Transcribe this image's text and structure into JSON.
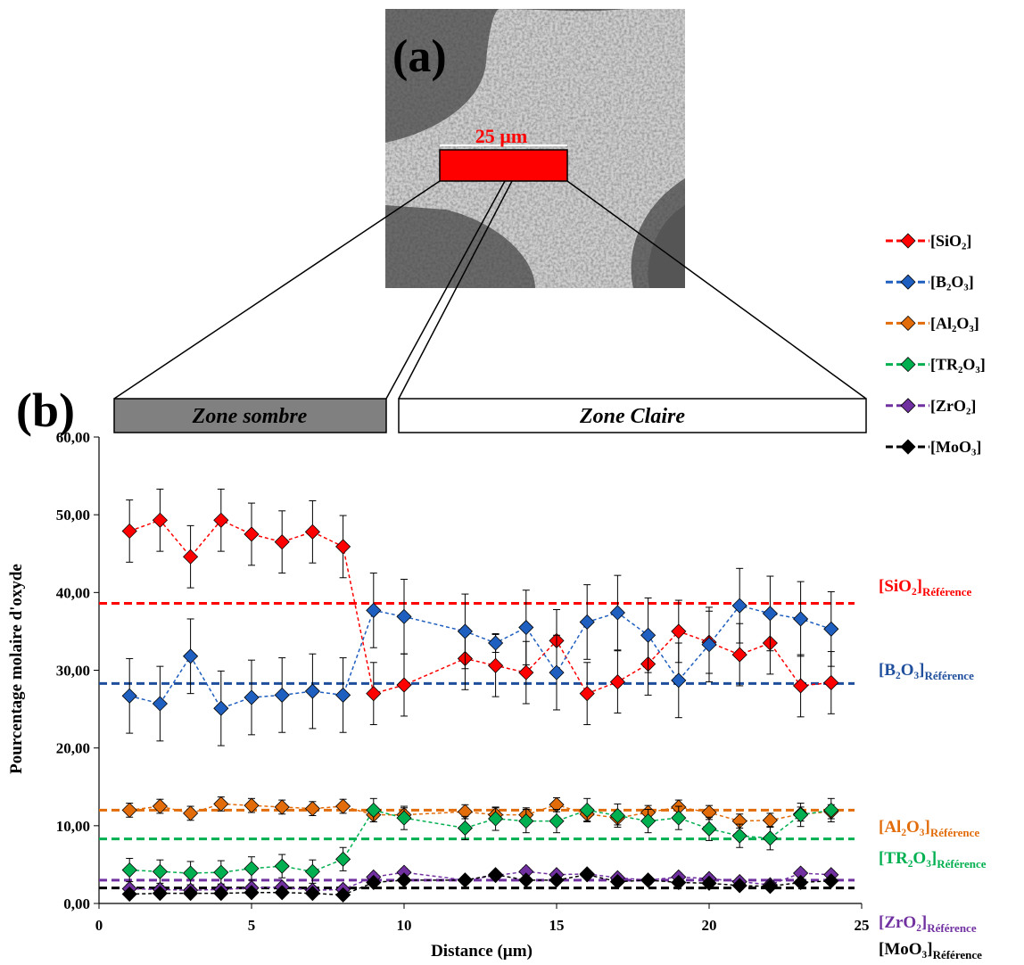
{
  "image": {
    "panel_label": "(a)",
    "scale_label": "25 µm"
  },
  "chart_data": {
    "type": "line",
    "panel_label": "(b)",
    "zones": [
      "Zone sombre",
      "Zone Claire"
    ],
    "xlabel": "Distance (µm)",
    "ylabel": "Pourcentage molaire d'oxyde",
    "x": [
      1,
      2,
      3,
      4,
      5,
      6,
      7,
      8,
      9,
      10,
      12,
      13,
      14,
      15,
      16,
      17,
      18,
      19,
      20,
      21,
      22,
      23,
      24
    ],
    "xlim": [
      0,
      25
    ],
    "xticks": [
      0,
      5,
      10,
      15,
      20,
      25
    ],
    "ylim": [
      0,
      60
    ],
    "yticks": [
      {
        "value": 0,
        "label": "0,00"
      },
      {
        "value": 10,
        "label": "10,00"
      },
      {
        "value": 20,
        "label": "20,00"
      },
      {
        "value": 30,
        "label": "30,00"
      },
      {
        "value": 40,
        "label": "40,00"
      },
      {
        "value": 50,
        "label": "50,00"
      },
      {
        "value": 60,
        "label": "60,00"
      }
    ],
    "legend": "right",
    "series": [
      {
        "name": "[SiO₂]",
        "color": "#ff0000",
        "reference_color": "#ff0000",
        "values": [
          47.9,
          49.3,
          44.6,
          49.3,
          47.5,
          46.5,
          47.8,
          45.9,
          27.0,
          28.1,
          31.5,
          30.6,
          29.7,
          33.8,
          27.0,
          28.5,
          30.8,
          35.0,
          33.6,
          32.0,
          33.5,
          28.0,
          28.4
        ],
        "errors": [
          4,
          4,
          4,
          4,
          4,
          4,
          4,
          4,
          4,
          4,
          4,
          4,
          4,
          4,
          4,
          4,
          4,
          4,
          4,
          4,
          4,
          4,
          4
        ],
        "reference": 38.6,
        "reference_label": "[SiO₂]",
        "reference_subscript": "Référence"
      },
      {
        "name": "[B₂O₃]",
        "color": "#1f5fbf",
        "reference_color": "#1f4e9c",
        "values": [
          26.7,
          25.7,
          31.8,
          25.1,
          26.5,
          26.8,
          27.3,
          26.8,
          37.7,
          36.9,
          35.0,
          33.5,
          35.5,
          29.7,
          36.2,
          37.4,
          34.5,
          28.7,
          33.3,
          38.3,
          37.3,
          36.6,
          35.3
        ],
        "errors": [
          4.8,
          4.8,
          4.8,
          4.8,
          4.8,
          4.8,
          4.8,
          4.8,
          4.8,
          4.8,
          4.8,
          1.2,
          4.8,
          4.8,
          4.8,
          4.8,
          4.8,
          4.8,
          4.8,
          4.8,
          4.8,
          4.8,
          4.8
        ],
        "reference": 28.3,
        "reference_label": "[B₂O₃]",
        "reference_subscript": "Référence"
      },
      {
        "name": "[Al₂O₃]",
        "color": "#e36c0a",
        "reference_color": "#e36c0a",
        "values": [
          12.0,
          12.5,
          11.6,
          12.8,
          12.6,
          12.4,
          12.2,
          12.5,
          11.4,
          11.4,
          11.8,
          11.4,
          11.4,
          12.7,
          11.5,
          11.0,
          11.7,
          12.4,
          11.7,
          10.6,
          10.7,
          11.5,
          11.8
        ],
        "errors": [
          0.9,
          0.9,
          0.9,
          0.9,
          0.9,
          0.9,
          0.9,
          0.9,
          0.9,
          0.9,
          0.9,
          0.9,
          0.9,
          0.9,
          0.9,
          0.9,
          0.9,
          0.9,
          0.9,
          0.9,
          0.9,
          0.9,
          0.9
        ],
        "reference": 12.0,
        "reference_label": "[Al₂O₃]",
        "reference_subscript": "Référence"
      },
      {
        "name": "[TR₂O₃]",
        "color": "#00b050",
        "reference_color": "#00b050",
        "values": [
          4.3,
          4.1,
          3.9,
          4.0,
          4.5,
          4.8,
          4.1,
          5.7,
          12.0,
          11.0,
          9.7,
          10.9,
          10.6,
          10.6,
          12.0,
          11.3,
          10.6,
          11.0,
          9.6,
          8.7,
          8.4,
          11.4,
          12.0
        ],
        "errors": [
          1.5,
          1.5,
          1.5,
          1.5,
          1.5,
          1.5,
          1.5,
          1.5,
          1.5,
          1.5,
          1.5,
          1.5,
          1.5,
          1.5,
          1.5,
          1.5,
          1.5,
          1.5,
          1.5,
          1.5,
          1.5,
          1.5,
          1.5
        ],
        "reference": 8.3,
        "reference_label": "[TR₂O₃]",
        "reference_subscript": "Référence"
      },
      {
        "name": "[ZrO₂]",
        "color": "#7030a0",
        "reference_color": "#7030a0",
        "values": [
          1.9,
          1.8,
          1.7,
          1.8,
          2.0,
          2.1,
          1.7,
          1.8,
          3.4,
          4.0,
          3.0,
          3.6,
          4.1,
          3.7,
          3.8,
          3.3,
          3.0,
          3.4,
          3.2,
          2.8,
          2.4,
          3.9,
          3.7
        ],
        "errors": [
          0.5,
          0.5,
          0.5,
          0.5,
          0.5,
          0.5,
          0.5,
          0.5,
          0.5,
          0.5,
          0.5,
          0.5,
          0.5,
          0.5,
          0.5,
          0.5,
          0.5,
          0.5,
          0.5,
          0.5,
          0.5,
          0.5,
          0.5
        ],
        "reference": 3.0,
        "reference_label": "[ZrO₂]",
        "reference_subscript": "Référence"
      },
      {
        "name": "[MoO₃]",
        "color": "#000000",
        "reference_color": "#000000",
        "values": [
          1.2,
          1.3,
          1.3,
          1.3,
          1.4,
          1.4,
          1.3,
          1.1,
          2.7,
          3.0,
          3.0,
          3.7,
          3.0,
          3.0,
          3.7,
          2.8,
          3.0,
          2.7,
          2.6,
          2.3,
          2.2,
          2.7,
          2.9
        ],
        "errors": [
          0.4,
          0.4,
          0.4,
          0.4,
          0.4,
          0.4,
          0.4,
          0.4,
          0.4,
          0.4,
          0.4,
          0.4,
          0.4,
          0.4,
          0.4,
          0.4,
          0.4,
          0.4,
          0.4,
          0.4,
          0.4,
          0.4,
          0.4
        ],
        "reference": 2.0,
        "reference_label": "[MoO₃]",
        "reference_subscript": "Référence"
      }
    ]
  }
}
